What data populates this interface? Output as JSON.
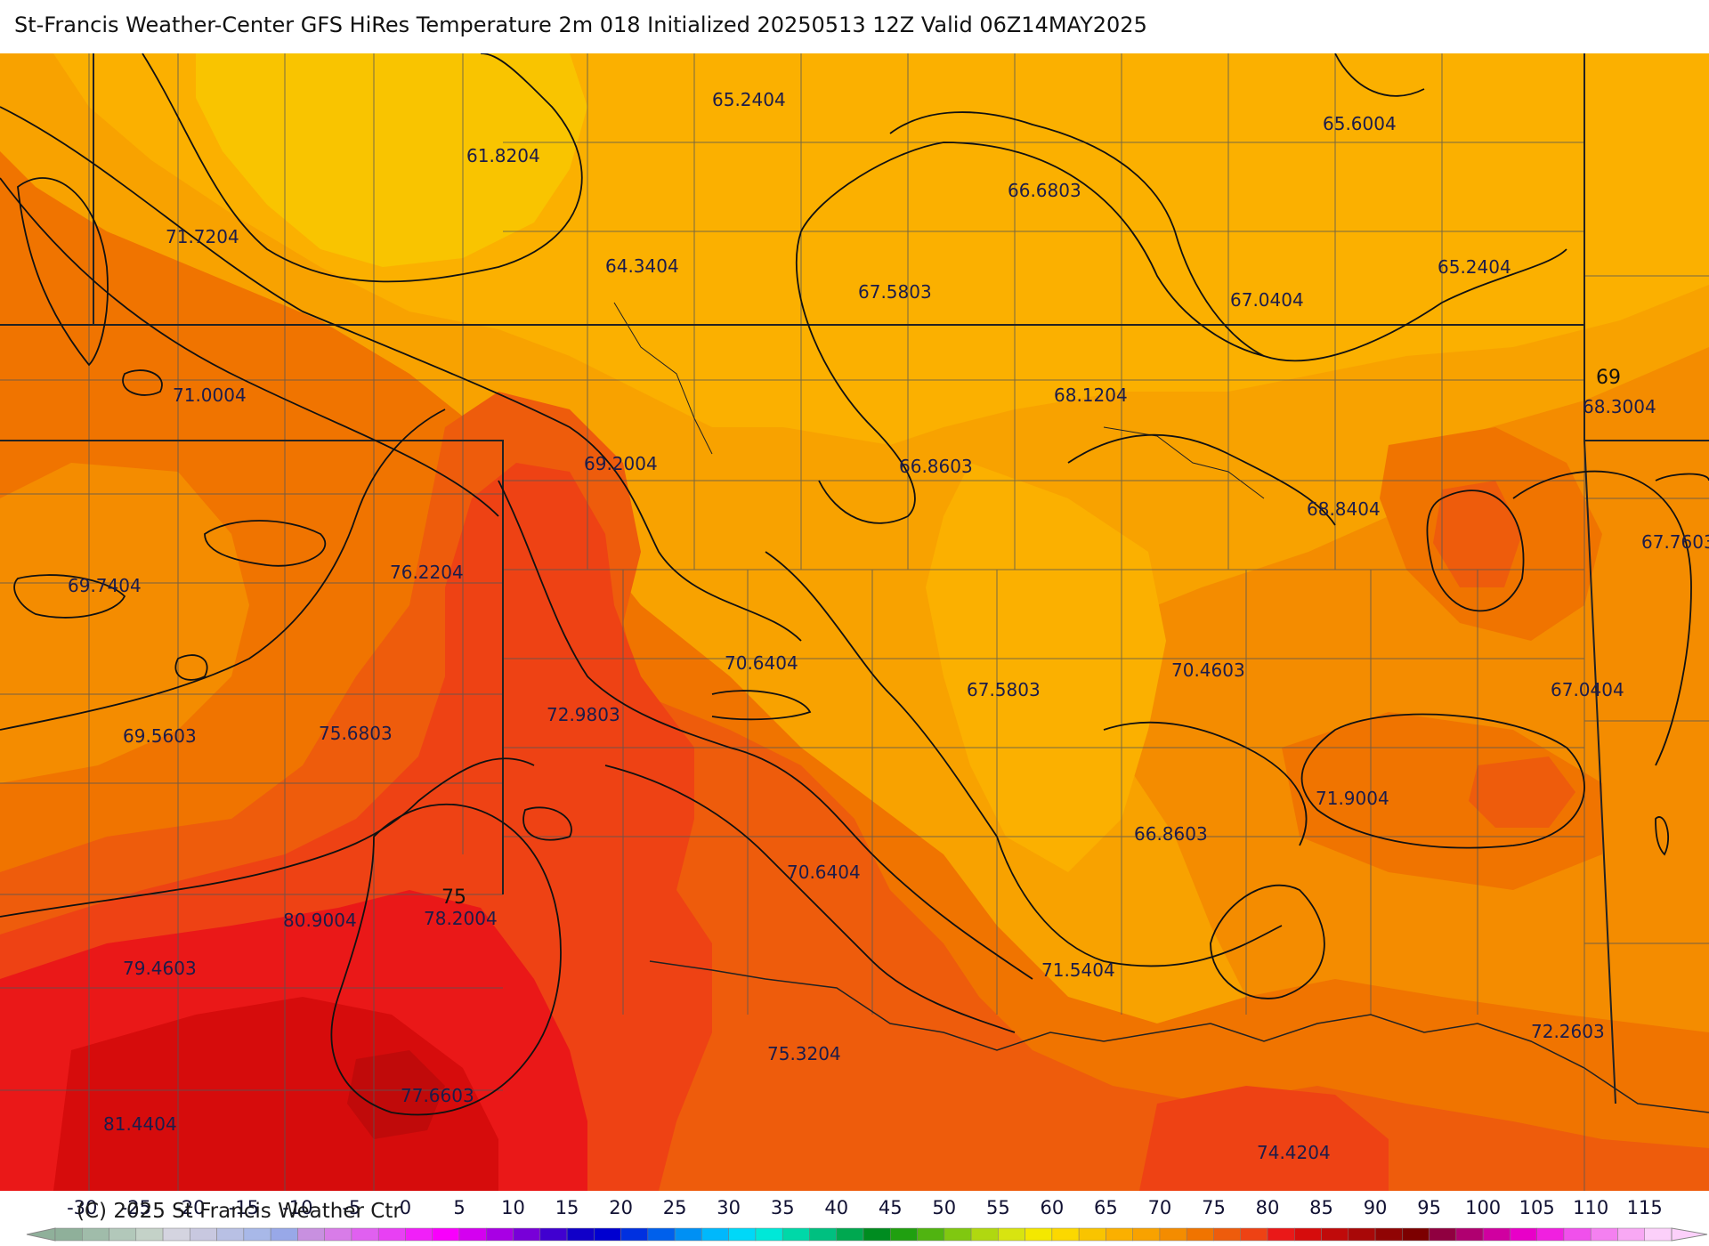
{
  "title": "St-Francis Weather-Center GFS HiRes Temperature 2m  018 Initialized 20250513 12Z Valid 06Z14MAY2025",
  "copyright": "(C) 2025 St Francis Weather Ctr",
  "colors": {
    "t60": "#f9c400",
    "t65": "#fbb000",
    "t67": "#f8a200",
    "t70": "#f48c00",
    "t72": "#f07400",
    "t75": "#ee5c0c",
    "t77": "#ee4214",
    "t80": "#ea1818",
    "t82": "#d60c0c",
    "t84": "#c00a0a",
    "border": "#444444",
    "contour": "#111111"
  },
  "temperature_labels": [
    {
      "text": "65.2404"
    },
    {
      "text": "61.8204"
    },
    {
      "text": "65.6004"
    },
    {
      "text": "66.6803"
    },
    {
      "text": "71.7204"
    },
    {
      "text": "64.3404"
    },
    {
      "text": "67.5803"
    },
    {
      "text": "67.0404"
    },
    {
      "text": "65.2404"
    },
    {
      "text": "71.0004"
    },
    {
      "text": "68.1204"
    },
    {
      "text": "68.3004"
    },
    {
      "text": "69.2004"
    },
    {
      "text": "66.8603"
    },
    {
      "text": "68.8404"
    },
    {
      "text": "67.7603"
    },
    {
      "text": "69.7404"
    },
    {
      "text": "76.2204"
    },
    {
      "text": "70.6404"
    },
    {
      "text": "67.5803"
    },
    {
      "text": "70.4603"
    },
    {
      "text": "67.0404"
    },
    {
      "text": "72.9803"
    },
    {
      "text": "69.5603"
    },
    {
      "text": "75.6803"
    },
    {
      "text": "71.9004"
    },
    {
      "text": "66.8603"
    },
    {
      "text": "70.6404"
    },
    {
      "text": "80.9004"
    },
    {
      "text": "78.2004"
    },
    {
      "text": "79.4603"
    },
    {
      "text": "71.5404"
    },
    {
      "text": "72.2603"
    },
    {
      "text": "75.3204"
    },
    {
      "text": "77.6603"
    },
    {
      "text": "81.4404"
    },
    {
      "text": "74.4204"
    }
  ],
  "contour_labels": [
    {
      "text": "69"
    },
    {
      "text": "75"
    }
  ],
  "colorbar": {
    "min": -35,
    "max": 120,
    "ticks": [
      "-30",
      "-25",
      "-20",
      "-15",
      "-10",
      "-5",
      "0",
      "5",
      "10",
      "15",
      "20",
      "25",
      "30",
      "35",
      "40",
      "45",
      "50",
      "55",
      "60",
      "65",
      "70",
      "75",
      "80",
      "85",
      "90",
      "95",
      "100",
      "105",
      "110",
      "115"
    ],
    "colors": [
      "#8fb09a",
      "#a0bcaa",
      "#b2c8ba",
      "#c4d2c8",
      "#d4d4e0",
      "#c8c8e0",
      "#b8c0e4",
      "#a8b8e8",
      "#98a8e8",
      "#c890e0",
      "#d87ce8",
      "#e060f0",
      "#e840f4",
      "#f020f8",
      "#f800fc",
      "#d400f0",
      "#a800e4",
      "#7800d8",
      "#4000d0",
      "#1000c8",
      "#0000d0",
      "#0030e0",
      "#0060ec",
      "#0090f4",
      "#00b8fc",
      "#00d8f8",
      "#00e8d8",
      "#00d8a8",
      "#00c080",
      "#00a850",
      "#008c20",
      "#20a010",
      "#50b410",
      "#80c810",
      "#b0d810",
      "#d8e410",
      "#f4e800",
      "#fcd800",
      "#f9c400",
      "#fbb000",
      "#f8a200",
      "#f48c00",
      "#f07400",
      "#ee5c0c",
      "#ee4214",
      "#ea1818",
      "#d60c0c",
      "#c00a0a",
      "#a80808",
      "#900404",
      "#7c0000",
      "#900040",
      "#b00070",
      "#d000a0",
      "#e800c8",
      "#f020e0",
      "#f050ec",
      "#f480f0",
      "#f8a8f4",
      "#fcd0fa"
    ]
  }
}
